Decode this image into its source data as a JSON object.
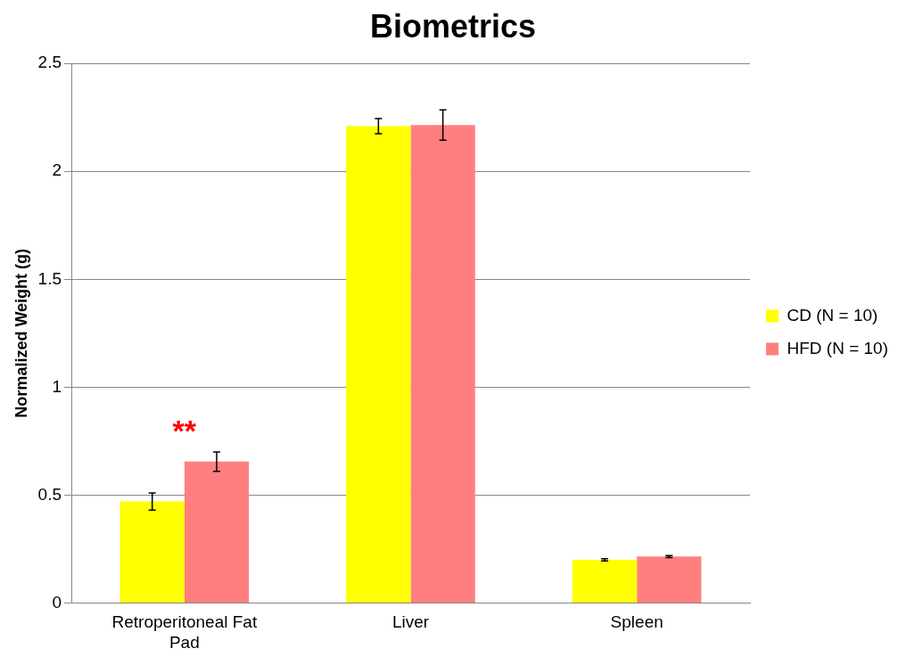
{
  "chart_data": {
    "type": "bar",
    "title": "Biometrics",
    "ylabel": "Normalized Weight (g)",
    "categories": [
      "Retroperitoneal Fat Pad",
      "Liver",
      "Spleen"
    ],
    "series": [
      {
        "name": "CD (N = 10)",
        "color": "#ffff00",
        "values": [
          0.47,
          2.21,
          0.2
        ],
        "errors": [
          0.04,
          0.035,
          0.005
        ]
      },
      {
        "name": "HFD (N = 10)",
        "color": "#ff7f7f",
        "values": [
          0.655,
          2.215,
          0.215
        ],
        "errors": [
          0.045,
          0.07,
          0.005
        ]
      }
    ],
    "ylim": [
      0,
      2.5
    ],
    "yticks": [
      0,
      0.5,
      1,
      1.5,
      2,
      2.5
    ],
    "grid": "y",
    "legend": "right",
    "annotations": [
      "**"
    ]
  }
}
